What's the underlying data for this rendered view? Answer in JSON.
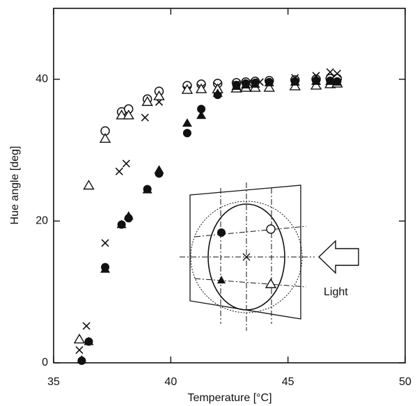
{
  "chart_data": {
    "type": "scatter",
    "x_label": "Temperature [°C]",
    "y_label": "Hue angle [deg]",
    "xlim": [
      35,
      50
    ],
    "xticks": [
      35,
      40,
      45,
      50
    ],
    "ylim": [
      0,
      50
    ],
    "yticks": [
      0,
      20,
      40
    ],
    "annotation": "Light",
    "series": [
      {
        "marker": "circle-open",
        "color": "#111111",
        "x": [
          37.2,
          37.9,
          38.2,
          39.0,
          39.5,
          40.7,
          41.3,
          42.0,
          42.8,
          43.2,
          43.6,
          44.2,
          45.3,
          46.2,
          46.8,
          47.1
        ],
        "values": [
          32.7,
          35.4,
          35.8,
          37.2,
          38.3,
          39.1,
          39.3,
          39.4,
          39.5,
          39.6,
          39.7,
          39.8,
          39.9,
          40.0,
          40.1,
          40.1
        ]
      },
      {
        "marker": "circle-filled",
        "color": "#111111",
        "x": [
          36.2,
          36.5,
          37.2,
          37.9,
          38.2,
          39.0,
          39.5,
          40.7,
          41.3,
          42.0,
          42.8,
          43.2,
          43.6,
          44.2,
          45.3,
          46.2,
          46.8,
          47.1
        ],
        "values": [
          0.3,
          3.0,
          13.5,
          19.5,
          20.4,
          24.5,
          26.7,
          32.4,
          35.8,
          37.8,
          39.2,
          39.4,
          39.5,
          39.6,
          39.7,
          39.8,
          39.8,
          39.7
        ]
      },
      {
        "marker": "cross",
        "color": "#111111",
        "x": [
          36.1,
          36.4,
          37.2,
          37.8,
          38.1,
          38.9,
          39.5,
          40.7,
          41.3,
          42.0,
          42.8,
          43.3,
          43.8,
          45.3,
          46.2,
          46.8,
          47.1
        ],
        "values": [
          1.8,
          5.2,
          16.9,
          27.0,
          28.1,
          34.6,
          36.8,
          38.5,
          38.8,
          39.0,
          39.3,
          39.5,
          39.6,
          40.2,
          40.5,
          41.0,
          40.8
        ]
      },
      {
        "marker": "triangle-open",
        "color": "#111111",
        "x": [
          36.1,
          36.5,
          37.2,
          37.9,
          38.2,
          39.0,
          39.5,
          40.7,
          41.3,
          42.0,
          42.8,
          43.2,
          43.6,
          44.2,
          45.3,
          46.2,
          46.8,
          47.1
        ],
        "values": [
          3.3,
          25.0,
          31.6,
          34.9,
          34.9,
          36.8,
          37.6,
          38.5,
          38.6,
          38.6,
          38.7,
          38.8,
          38.8,
          38.8,
          39.0,
          39.1,
          39.3,
          39.4
        ]
      },
      {
        "marker": "triangle-filled",
        "color": "#111111",
        "x": [
          36.2,
          36.5,
          37.2,
          37.9,
          38.2,
          39.0,
          39.5,
          40.7,
          41.3,
          42.0,
          42.8,
          43.2,
          43.6,
          44.2,
          45.3,
          46.2,
          46.8,
          47.1
        ],
        "values": [
          0.4,
          3.0,
          13.2,
          19.5,
          20.7,
          24.4,
          27.2,
          33.8,
          34.9,
          38.0,
          39.0,
          39.2,
          39.3,
          39.5,
          39.6,
          39.7,
          39.7,
          39.6
        ]
      }
    ]
  }
}
